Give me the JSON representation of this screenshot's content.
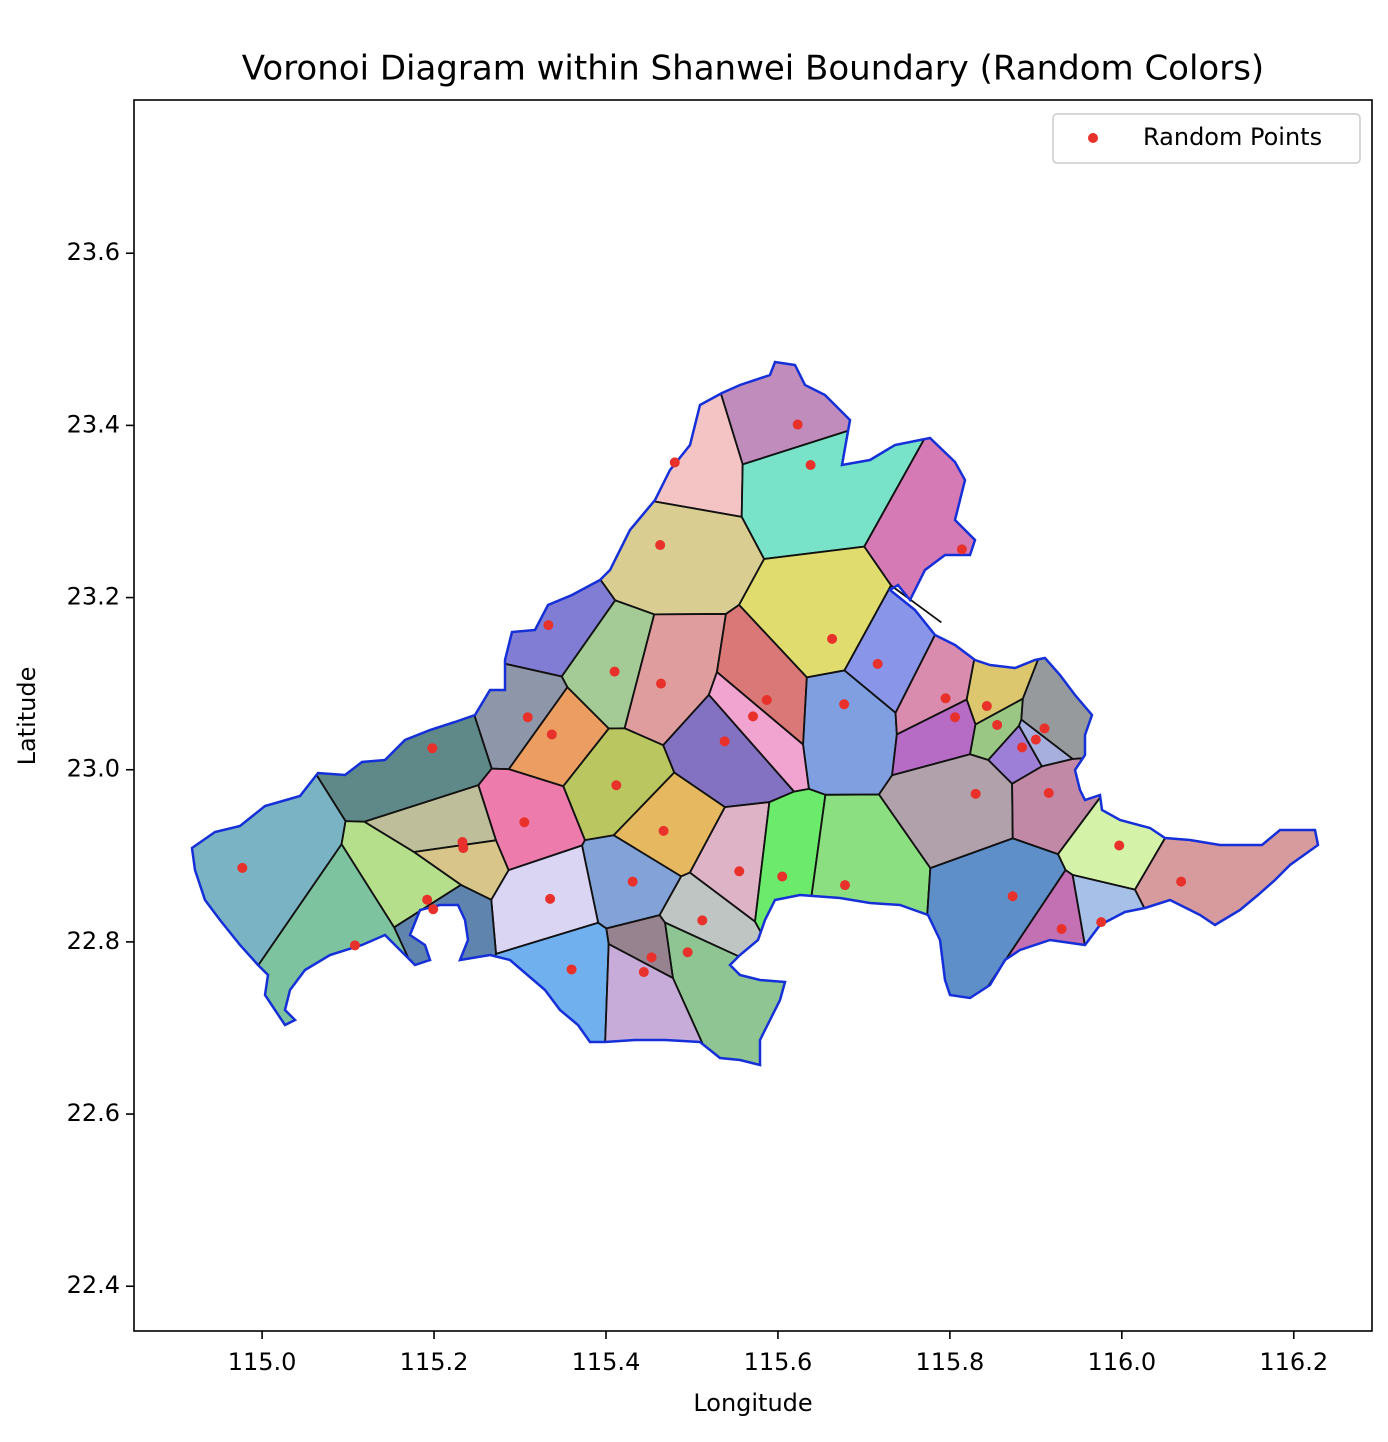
{
  "chart_data": {
    "type": "scatter",
    "title": "Voronoi Diagram within Shanwei Boundary (Random Colors)",
    "xlabel": "Longitude",
    "ylabel": "Latitude",
    "legend": "upper right",
    "series": [
      {
        "name": "Random Points",
        "color": "#e8312a",
        "x": [
          115.623,
          115.48,
          115.638,
          115.463,
          115.814,
          115.333,
          115.663,
          115.41,
          115.716,
          115.464,
          115.587,
          115.309,
          115.571,
          115.677,
          115.795,
          115.843,
          115.806,
          115.855,
          115.91,
          115.337,
          115.538,
          115.198,
          115.884,
          115.9,
          115.412,
          115.83,
          115.915,
          115.305,
          115.467,
          115.233,
          115.234,
          115.997,
          114.977,
          115.555,
          115.605,
          115.431,
          115.678,
          116.069,
          115.873,
          115.335,
          115.192,
          115.199,
          115.512,
          115.976,
          115.93,
          115.108,
          115.495,
          115.453,
          115.36,
          115.444
        ],
        "y": [
          23.401,
          23.357,
          23.354,
          23.261,
          23.256,
          23.168,
          23.152,
          23.114,
          23.123,
          23.1,
          23.081,
          23.061,
          23.062,
          23.076,
          23.083,
          23.074,
          23.061,
          23.052,
          23.048,
          23.041,
          23.033,
          23.025,
          23.026,
          23.035,
          22.982,
          22.972,
          22.973,
          22.939,
          22.929,
          22.916,
          22.909,
          22.912,
          22.886,
          22.882,
          22.876,
          22.87,
          22.866,
          22.87,
          22.853,
          22.85,
          22.849,
          22.838,
          22.825,
          22.823,
          22.815,
          22.796,
          22.788,
          22.782,
          22.768,
          22.765
        ]
      }
    ],
    "xlim": [
      114.851,
      116.291
    ],
    "ylim": [
      22.348,
      23.778
    ],
    "xticks": [
      {
        "value": 115,
        "label": "115.0"
      },
      115.2,
      115.4,
      115.6,
      115.8,
      {
        "value": 116,
        "label": "116.0"
      },
      116.2
    ],
    "yticks": [
      22.4,
      22.6,
      22.8,
      {
        "value": 23,
        "label": "23.0"
      },
      23.2,
      23.4,
      23.6
    ]
  }
}
